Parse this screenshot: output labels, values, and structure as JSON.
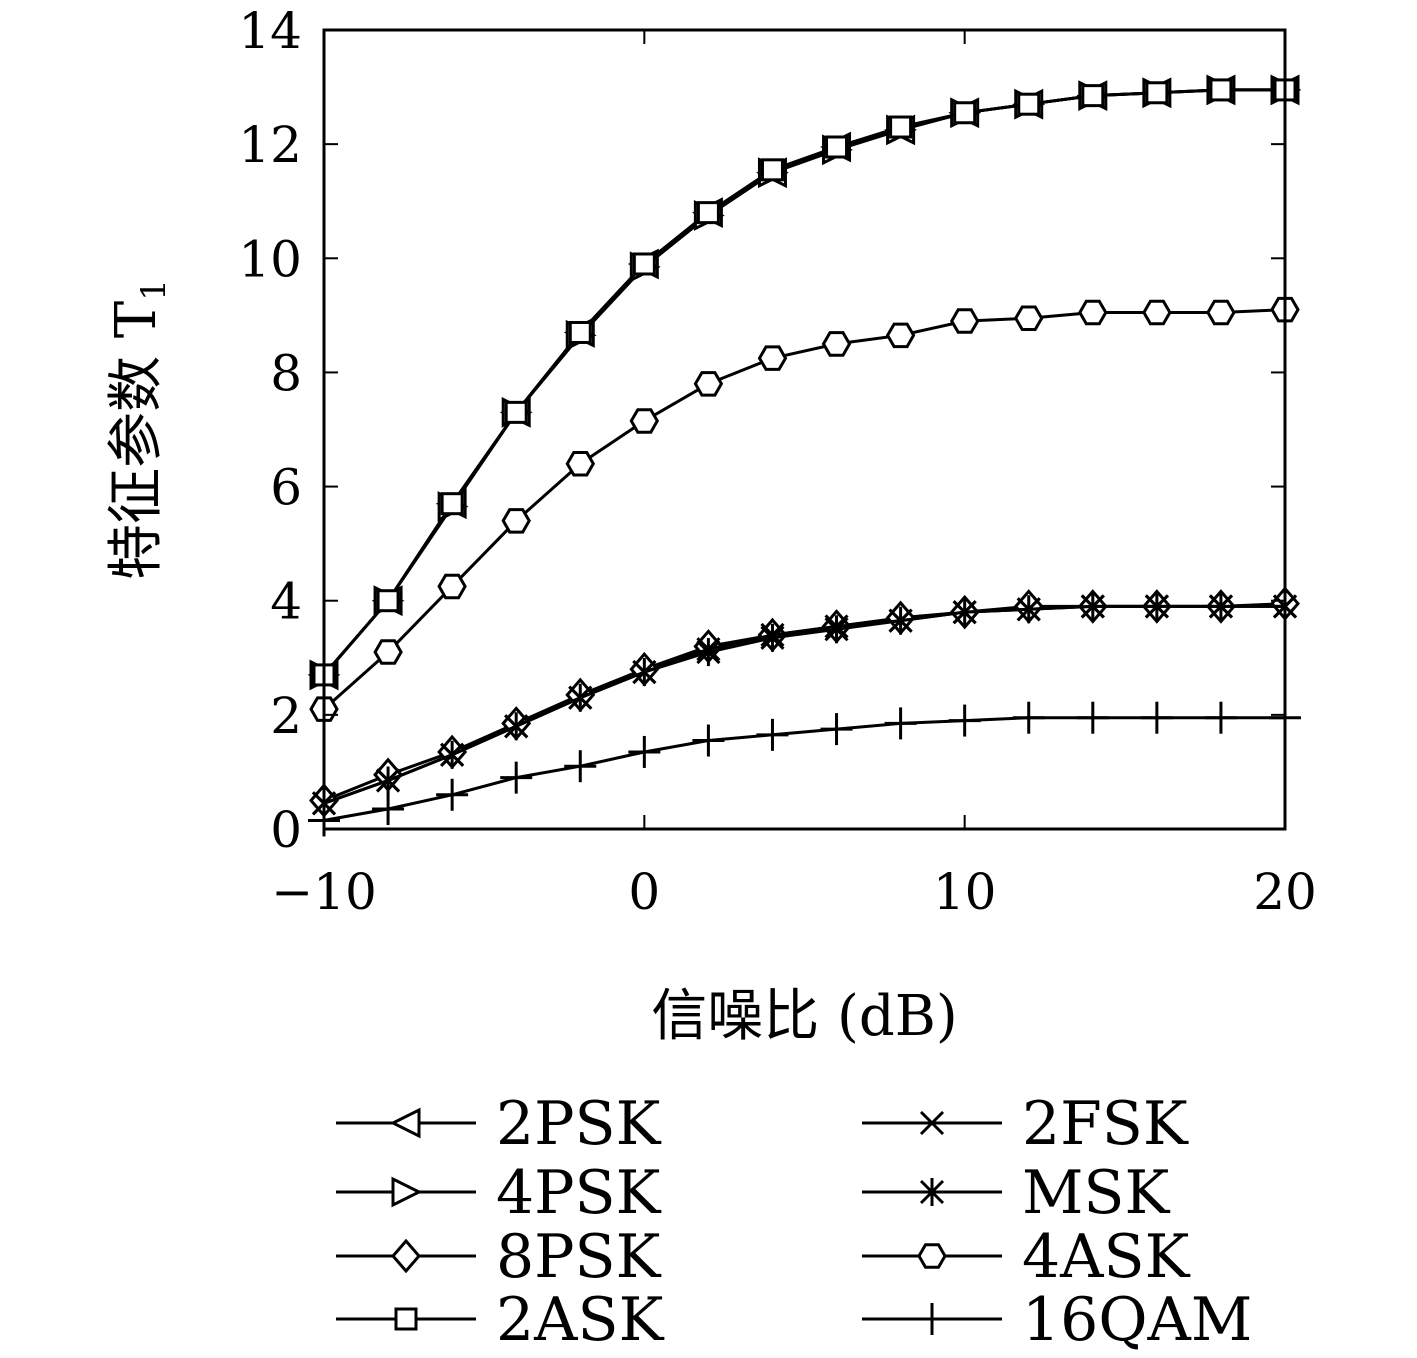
{
  "chart_data": {
    "type": "line",
    "title": "",
    "xlabel": "信噪比 (dB)",
    "ylabel": "特征参数 T",
    "ylabel_subscript": "1",
    "xlim": [
      -10,
      20
    ],
    "ylim": [
      0,
      14
    ],
    "xticks": [
      "−10",
      "0",
      "10",
      "20"
    ],
    "yticks": [
      "0",
      "2",
      "4",
      "6",
      "8",
      "10",
      "12",
      "14"
    ],
    "x": [
      -10,
      -8,
      -6,
      -4,
      -2,
      0,
      2,
      4,
      6,
      8,
      10,
      12,
      14,
      16,
      18,
      20
    ],
    "legend_position": "bottom",
    "series": [
      {
        "name": "2PSK",
        "marker": "triangle-left",
        "values": [
          2.7,
          4.0,
          5.7,
          7.3,
          8.7,
          9.9,
          10.8,
          11.5,
          11.95,
          12.25,
          12.55,
          12.7,
          12.85,
          12.9,
          12.95,
          12.95
        ]
      },
      {
        "name": "4PSK",
        "marker": "triangle-right",
        "values": [
          2.7,
          4.0,
          5.65,
          7.3,
          8.65,
          9.85,
          10.75,
          11.5,
          11.9,
          12.25,
          12.55,
          12.7,
          12.85,
          12.9,
          12.95,
          12.95
        ]
      },
      {
        "name": "8PSK",
        "marker": "diamond",
        "values": [
          0.5,
          0.95,
          1.35,
          1.85,
          2.35,
          2.8,
          3.2,
          3.4,
          3.55,
          3.7,
          3.8,
          3.9,
          3.9,
          3.9,
          3.9,
          3.95
        ]
      },
      {
        "name": "2ASK",
        "marker": "square",
        "values": [
          2.7,
          4.0,
          5.7,
          7.3,
          8.7,
          9.9,
          10.8,
          11.55,
          11.95,
          12.3,
          12.55,
          12.7,
          12.85,
          12.9,
          12.95,
          12.95
        ]
      },
      {
        "name": "2FSK",
        "marker": "x",
        "values": [
          0.45,
          0.85,
          1.3,
          1.8,
          2.3,
          2.75,
          3.15,
          3.4,
          3.55,
          3.65,
          3.8,
          3.85,
          3.9,
          3.9,
          3.9,
          3.9
        ]
      },
      {
        "name": "MSK",
        "marker": "asterisk",
        "values": [
          0.45,
          0.85,
          1.3,
          1.8,
          2.3,
          2.75,
          3.1,
          3.35,
          3.5,
          3.65,
          3.8,
          3.85,
          3.9,
          3.9,
          3.9,
          3.9
        ]
      },
      {
        "name": "4ASK",
        "marker": "hexagon",
        "values": [
          2.1,
          3.1,
          4.25,
          5.4,
          6.4,
          7.15,
          7.8,
          8.25,
          8.5,
          8.65,
          8.9,
          8.95,
          9.05,
          9.05,
          9.05,
          9.1
        ]
      },
      {
        "name": "16QAM",
        "marker": "plus",
        "values": [
          0.15,
          0.35,
          0.6,
          0.9,
          1.1,
          1.35,
          1.55,
          1.65,
          1.75,
          1.85,
          1.9,
          1.95,
          1.95,
          1.95,
          1.95,
          1.95
        ]
      }
    ],
    "legend_order": [
      "2PSK",
      "2FSK",
      "4PSK",
      "MSK",
      "8PSK",
      "4ASK",
      "2ASK",
      "16QAM"
    ]
  }
}
